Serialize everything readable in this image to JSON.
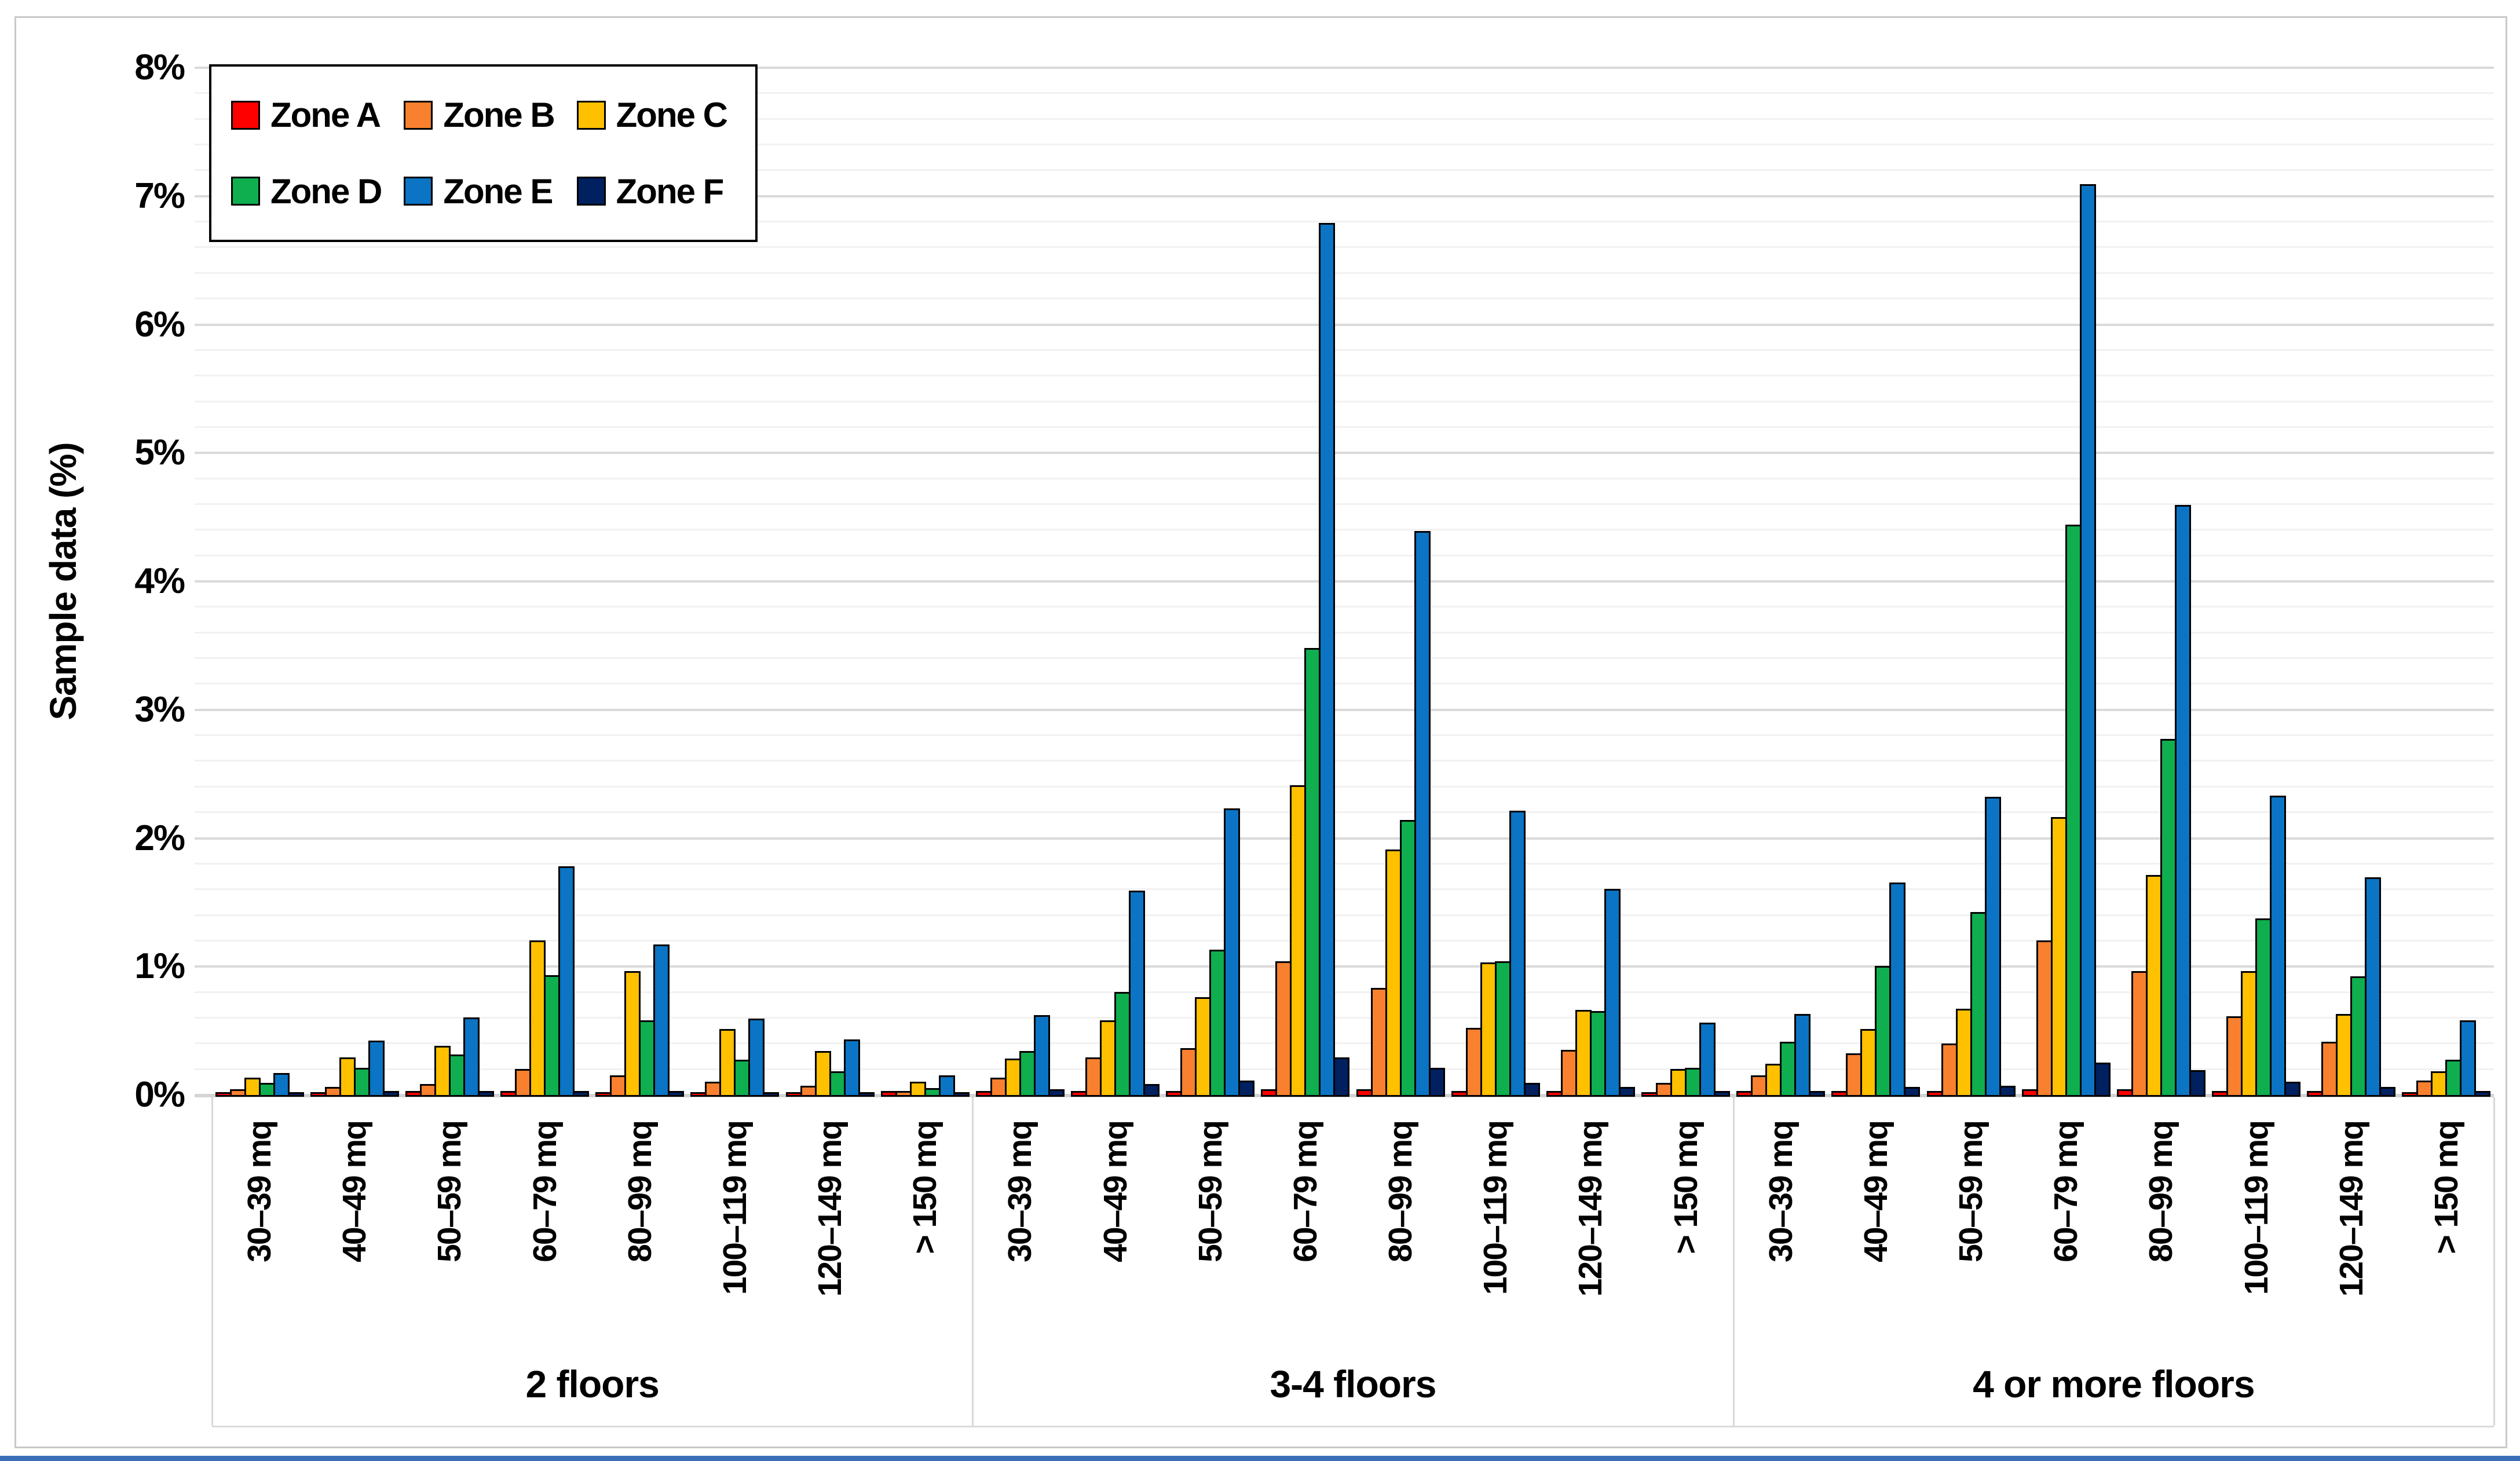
{
  "chart_data": {
    "type": "bar",
    "title": "",
    "ylabel": "Sample data (%)",
    "ylim": [
      0,
      8
    ],
    "y_tick_labels": [
      "0%",
      "1%",
      "2%",
      "3%",
      "4%",
      "5%",
      "6%",
      "7%",
      "8%"
    ],
    "grid": {
      "minor_step_percent": 0.2,
      "major_step_percent": 1.0,
      "gridlines_on": true
    },
    "legend_position": "top-left",
    "legend_rows": [
      [
        "Zone A",
        "Zone B",
        "Zone C"
      ],
      [
        "Zone D",
        "Zone E",
        "Zone F"
      ]
    ],
    "group_labels": [
      "2 floors",
      "3-4 floors",
      "4 or more floors"
    ],
    "categories": [
      "30–39 mq",
      "40–49 mq",
      "50–59 mq",
      "60–79 mq",
      "80–99 mq",
      "100–119 mq",
      "120–149 mq",
      "> 150 mq"
    ],
    "series": [
      {
        "name": "Zone A",
        "color": "#fe0000",
        "values_by_group": [
          [
            0.01,
            0.01,
            0.02,
            0.02,
            0.01,
            0.01,
            0.01,
            0.02
          ],
          [
            0.02,
            0.02,
            0.02,
            0.03,
            0.03,
            0.02,
            0.02,
            0.01
          ],
          [
            0.02,
            0.02,
            0.02,
            0.03,
            0.03,
            0.02,
            0.02,
            0.01
          ]
        ]
      },
      {
        "name": "Zone B",
        "color": "#f8802e",
        "values_by_group": [
          [
            0.03,
            0.05,
            0.07,
            0.19,
            0.14,
            0.09,
            0.06,
            0.02
          ],
          [
            0.12,
            0.28,
            0.35,
            1.03,
            0.82,
            0.51,
            0.34,
            0.08
          ],
          [
            0.14,
            0.31,
            0.39,
            1.19,
            0.95,
            0.6,
            0.4,
            0.1
          ]
        ]
      },
      {
        "name": "Zone C",
        "color": "#ffc000",
        "values_by_group": [
          [
            0.12,
            0.28,
            0.37,
            1.19,
            0.95,
            0.5,
            0.33,
            0.09
          ],
          [
            0.27,
            0.57,
            0.75,
            2.4,
            1.9,
            1.02,
            0.65,
            0.19
          ],
          [
            0.23,
            0.5,
            0.66,
            2.15,
            1.7,
            0.95,
            0.62,
            0.17
          ]
        ]
      },
      {
        "name": "Zone D",
        "color": "#0fae4f",
        "values_by_group": [
          [
            0.08,
            0.2,
            0.3,
            0.92,
            0.57,
            0.26,
            0.17,
            0.04
          ],
          [
            0.33,
            0.79,
            1.12,
            3.47,
            2.13,
            1.03,
            0.64,
            0.2
          ],
          [
            0.4,
            0.99,
            1.41,
            4.43,
            2.76,
            1.36,
            0.91,
            0.26
          ]
        ]
      },
      {
        "name": "Zone E",
        "color": "#0b74c4",
        "values_by_group": [
          [
            0.16,
            0.41,
            0.59,
            1.77,
            1.16,
            0.58,
            0.42,
            0.14
          ],
          [
            0.61,
            1.58,
            2.22,
            6.78,
            4.38,
            2.2,
            1.59,
            0.55
          ],
          [
            0.62,
            1.64,
            2.31,
            7.08,
            4.58,
            2.32,
            1.68,
            0.57
          ]
        ]
      },
      {
        "name": "Zone F",
        "color": "#002060",
        "values_by_group": [
          [
            0.01,
            0.02,
            0.02,
            0.02,
            0.02,
            0.01,
            0.01,
            0.01
          ],
          [
            0.03,
            0.07,
            0.1,
            0.28,
            0.2,
            0.08,
            0.05,
            0.02
          ],
          [
            0.02,
            0.05,
            0.06,
            0.24,
            0.18,
            0.09,
            0.05,
            0.02
          ]
        ]
      }
    ]
  }
}
